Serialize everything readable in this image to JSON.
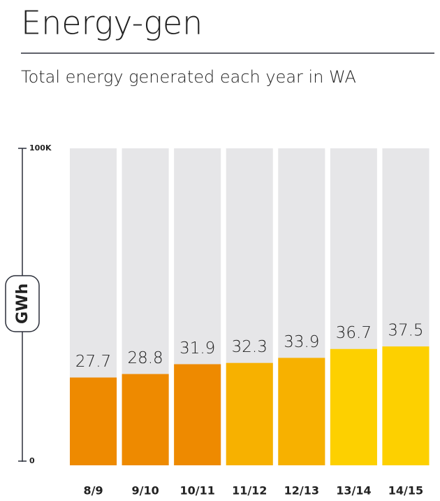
{
  "chart_data": {
    "type": "bar",
    "title": "Energy-gen",
    "subtitle": "Total energy generated each year in WA",
    "y_label": "GWh",
    "categories": [
      "8/9",
      "9/10",
      "10/11",
      "11/12",
      "12/13",
      "13/14",
      "14/15"
    ],
    "values": [
      27700,
      28800,
      31900,
      32300,
      33900,
      36700,
      37500
    ],
    "value_labels": [
      "27.7",
      "28.8",
      "31.9",
      "32.3",
      "33.9",
      "36.7",
      "37.5"
    ],
    "colors": [
      "#ee8a00",
      "#ee8a00",
      "#ee8a00",
      "#f7b100",
      "#f7b100",
      "#fdd000",
      "#fdd000"
    ],
    "ylim": [
      0,
      100000
    ],
    "yticks": [
      0,
      {
        "value": 100000,
        "label": "100K"
      }
    ]
  }
}
